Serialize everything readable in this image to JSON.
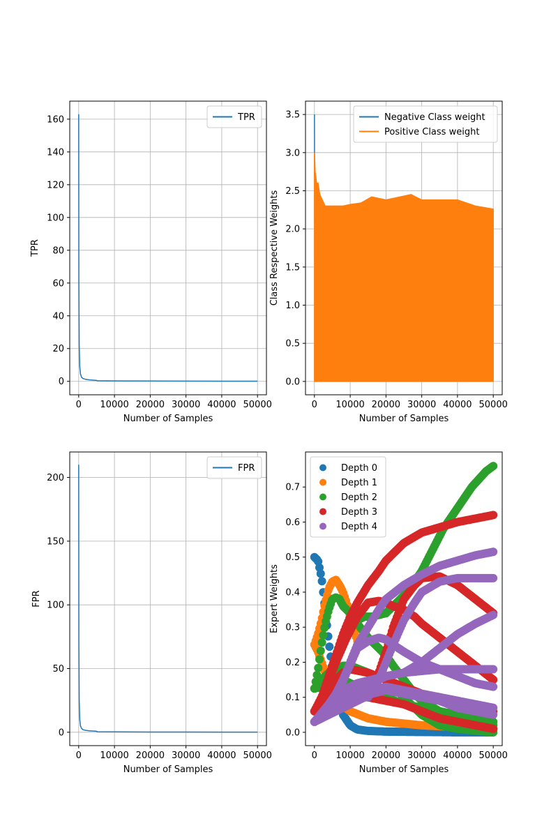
{
  "colors": {
    "blue": "#1f77b4",
    "orange": "#ff7f0e",
    "green": "#2ca02c",
    "red": "#d62728",
    "purple": "#9467bd",
    "grid": "#b0b0b0"
  },
  "chart_data": [
    {
      "id": "tpr",
      "type": "line",
      "xlabel": "Number of Samples",
      "ylabel": "TPR",
      "xlim": [
        -2500,
        52500
      ],
      "ylim": [
        -8.2,
        171
      ],
      "xticks": [
        0,
        10000,
        20000,
        30000,
        40000,
        50000
      ],
      "yticks": [
        0,
        20,
        40,
        60,
        80,
        100,
        120,
        140,
        160
      ],
      "grid": true,
      "legend": "upper-right",
      "series": [
        {
          "name": "TPR",
          "color": "#1f77b4",
          "x": [
            0,
            50,
            150,
            300,
            500,
            800,
            1200,
            2000,
            3000,
            5000,
            5200,
            10000,
            20000,
            30000,
            40000,
            50000
          ],
          "y": [
            163,
            60,
            22,
            9,
            4.5,
            2.5,
            1.7,
            1.2,
            0.9,
            0.6,
            0.35,
            0.25,
            0.18,
            0.14,
            0.12,
            0.1
          ]
        }
      ]
    },
    {
      "id": "class-weights",
      "type": "area",
      "xlabel": "Number of Samples",
      "ylabel": "Class Respective Weights",
      "xlim": [
        -2500,
        52500
      ],
      "ylim": [
        -0.175,
        3.675
      ],
      "xticks": [
        0,
        10000,
        20000,
        30000,
        40000,
        50000
      ],
      "yticks": [
        0.0,
        0.5,
        1.0,
        1.5,
        2.0,
        2.5,
        3.0,
        3.5
      ],
      "grid": true,
      "legend": "upper-right",
      "series": [
        {
          "name": "Negative Class weight",
          "color": "#1f77b4",
          "x": [
            0,
            100,
            200,
            500,
            1000,
            2000,
            5000,
            10000,
            20000,
            30000,
            40000,
            50000
          ],
          "y": [
            3.5,
            1.3,
            1.0,
            0.9,
            0.8,
            0.75,
            0.7,
            0.7,
            0.7,
            0.7,
            0.7,
            0.7
          ]
        },
        {
          "name": "Positive Class weight",
          "color": "#ff7f0e",
          "x": [
            0,
            200,
            600,
            1000,
            1500,
            2000,
            3000,
            5000,
            8000,
            10000,
            13000,
            16000,
            20000,
            24000,
            27000,
            30000,
            35000,
            40000,
            45000,
            50000
          ],
          "y": [
            3.0,
            2.75,
            2.6,
            2.6,
            2.45,
            2.4,
            2.3,
            2.3,
            2.3,
            2.32,
            2.34,
            2.42,
            2.38,
            2.42,
            2.45,
            2.38,
            2.38,
            2.38,
            2.3,
            2.26
          ],
          "lower": 0.0
        }
      ]
    },
    {
      "id": "fpr",
      "type": "line",
      "xlabel": "Number of Samples",
      "ylabel": "FPR",
      "xlim": [
        -2500,
        52500
      ],
      "ylim": [
        -10.5,
        220
      ],
      "xticks": [
        0,
        10000,
        20000,
        30000,
        40000,
        50000
      ],
      "yticks": [
        0,
        50,
        100,
        150,
        200
      ],
      "grid": true,
      "legend": "upper-right",
      "series": [
        {
          "name": "FPR",
          "color": "#1f77b4",
          "x": [
            0,
            50,
            150,
            300,
            500,
            800,
            1200,
            2000,
            3000,
            5000,
            5200,
            10000,
            20000,
            30000,
            40000,
            50000
          ],
          "y": [
            210,
            70,
            25,
            10,
            5,
            3,
            2,
            1.5,
            1.1,
            0.8,
            0.4,
            0.3,
            0.2,
            0.15,
            0.12,
            0.1
          ]
        }
      ]
    },
    {
      "id": "expert-weights",
      "type": "scatter",
      "xlabel": "Number of Samples",
      "ylabel": "Expert Weights",
      "xlim": [
        -2500,
        52500
      ],
      "ylim": [
        -0.038,
        0.8
      ],
      "xticks": [
        0,
        10000,
        20000,
        30000,
        40000,
        50000
      ],
      "yticks": [
        0.0,
        0.1,
        0.2,
        0.3,
        0.4,
        0.5,
        0.6,
        0.7
      ],
      "grid": false,
      "legend": "upper-left",
      "series": [
        {
          "name": "Depth 0",
          "color": "#1f77b4",
          "curves": [
            {
              "x": [
                0,
                1000,
                2000,
                3000,
                4000,
                5000,
                6000,
                7000,
                8000,
                10000,
                12000,
                15000,
                20000,
                30000,
                40000,
                50000
              ],
              "y": [
                0.5,
                0.49,
                0.44,
                0.35,
                0.26,
                0.18,
                0.12,
                0.08,
                0.05,
                0.02,
                0.008,
                0.004,
                0.002,
                0.001,
                0.0,
                0.0
              ]
            }
          ]
        },
        {
          "name": "Depth 1",
          "color": "#ff7f0e",
          "curves": [
            {
              "x": [
                0,
                1000,
                2000,
                3000,
                4000,
                5000,
                6000,
                7000,
                8000,
                9000,
                10000,
                12000
              ],
              "y": [
                0.25,
                0.28,
                0.32,
                0.37,
                0.41,
                0.43,
                0.435,
                0.42,
                0.4,
                0.37,
                0.33,
                0.26
              ]
            },
            {
              "x": [
                0,
                1000,
                2000,
                3000,
                4000,
                5000,
                6000,
                8000,
                10000,
                15000,
                20000,
                30000,
                40000,
                50000
              ],
              "y": [
                0.25,
                0.23,
                0.2,
                0.17,
                0.14,
                0.12,
                0.1,
                0.075,
                0.06,
                0.04,
                0.03,
                0.02,
                0.015,
                0.01
              ]
            }
          ]
        },
        {
          "name": "Depth 2",
          "color": "#2ca02c",
          "curves": [
            {
              "x": [
                0,
                1000,
                2000,
                3000,
                4000,
                5000,
                6000,
                7000,
                8000,
                10000,
                12000,
                14000,
                16000,
                18000,
                20000
              ],
              "y": [
                0.125,
                0.18,
                0.25,
                0.31,
                0.35,
                0.38,
                0.385,
                0.38,
                0.36,
                0.34,
                0.32,
                0.33,
                0.33,
                0.335,
                0.34
              ]
            },
            {
              "x": [
                20000,
                22000,
                25000,
                28000,
                30000,
                33000,
                36000,
                40000,
                44000,
                48000,
                50000
              ],
              "y": [
                0.34,
                0.36,
                0.39,
                0.43,
                0.46,
                0.52,
                0.58,
                0.64,
                0.7,
                0.745,
                0.76
              ]
            },
            {
              "x": [
                10000,
                12000,
                15000,
                18000,
                20000,
                22000,
                25000,
                28000,
                30000,
                35000,
                40000,
                45000,
                50000
              ],
              "y": [
                0.34,
                0.31,
                0.27,
                0.24,
                0.22,
                0.19,
                0.15,
                0.11,
                0.09,
                0.06,
                0.04,
                0.03,
                0.02
              ]
            },
            {
              "x": [
                0,
                2000,
                4000,
                6000,
                8000,
                10000,
                15000,
                20000,
                25000,
                30000,
                35000,
                40000,
                45000,
                50000
              ],
              "y": [
                0.125,
                0.15,
                0.17,
                0.18,
                0.19,
                0.19,
                0.17,
                0.15,
                0.1,
                0.05,
                0.02,
                0.01,
                0.005,
                0.0
              ]
            },
            {
              "x": [
                0,
                2000,
                4000,
                6000,
                8000,
                10000,
                15000,
                20000,
                25000,
                30000,
                35000,
                40000,
                45000,
                50000
              ],
              "y": [
                0.125,
                0.13,
                0.14,
                0.15,
                0.15,
                0.14,
                0.12,
                0.1,
                0.08,
                0.07,
                0.06,
                0.05,
                0.04,
                0.03
              ]
            }
          ]
        },
        {
          "name": "Depth 3",
          "color": "#d62728",
          "curves": [
            {
              "x": [
                0,
                2000,
                4000,
                6000,
                8000,
                10000,
                12000,
                15000,
                18000,
                20000,
                25000,
                30000,
                35000,
                40000,
                45000,
                50000
              ],
              "y": [
                0.06,
                0.1,
                0.16,
                0.22,
                0.28,
                0.33,
                0.37,
                0.42,
                0.46,
                0.49,
                0.54,
                0.57,
                0.585,
                0.6,
                0.61,
                0.62
              ]
            },
            {
              "x": [
                0,
                3000,
                6000,
                9000,
                12000,
                15000,
                18000,
                20000,
                22000,
                25000,
                28000,
                30000,
                35000,
                40000,
                45000,
                50000
              ],
              "y": [
                0.06,
                0.12,
                0.2,
                0.27,
                0.33,
                0.37,
                0.375,
                0.37,
                0.36,
                0.35,
                0.33,
                0.31,
                0.27,
                0.23,
                0.19,
                0.15
              ]
            },
            {
              "x": [
                15000,
                18000,
                20000,
                22000,
                25000,
                28000,
                30000,
                35000,
                40000,
                45000,
                50000
              ],
              "y": [
                0.1,
                0.17,
                0.23,
                0.3,
                0.38,
                0.42,
                0.44,
                0.445,
                0.42,
                0.38,
                0.34
              ]
            },
            {
              "x": [
                0,
                2000,
                4000,
                6000,
                8000,
                10000,
                15000,
                20000,
                25000,
                30000,
                35000,
                40000,
                45000,
                50000
              ],
              "y": [
                0.06,
                0.09,
                0.12,
                0.15,
                0.17,
                0.18,
                0.17,
                0.15,
                0.13,
                0.11,
                0.1,
                0.09,
                0.07,
                0.06
              ]
            },
            {
              "x": [
                0,
                2000,
                4000,
                6000,
                8000,
                10000,
                15000,
                20000,
                25000,
                30000,
                35000,
                40000,
                45000,
                50000
              ],
              "y": [
                0.06,
                0.07,
                0.08,
                0.09,
                0.1,
                0.1,
                0.1,
                0.09,
                0.08,
                0.06,
                0.04,
                0.03,
                0.02,
                0.01
              ]
            }
          ]
        },
        {
          "name": "Depth 4",
          "color": "#9467bd",
          "curves": [
            {
              "x": [
                0,
                2000,
                4000,
                6000,
                8000,
                10000,
                12000,
                15000,
                18000,
                20000,
                25000,
                30000,
                35000,
                40000,
                45000,
                50000
              ],
              "y": [
                0.03,
                0.05,
                0.08,
                0.11,
                0.15,
                0.2,
                0.25,
                0.3,
                0.35,
                0.38,
                0.42,
                0.45,
                0.475,
                0.49,
                0.505,
                0.515
              ]
            },
            {
              "x": [
                15000,
                18000,
                20000,
                22000,
                25000,
                28000,
                30000,
                35000,
                40000,
                45000,
                50000
              ],
              "y": [
                0.1,
                0.15,
                0.2,
                0.25,
                0.32,
                0.37,
                0.4,
                0.43,
                0.44,
                0.44,
                0.44
              ]
            },
            {
              "x": [
                0,
                3000,
                6000,
                9000,
                12000,
                15000,
                18000,
                20000,
                22000,
                25000,
                30000,
                35000,
                40000,
                45000,
                50000
              ],
              "y": [
                0.03,
                0.06,
                0.1,
                0.17,
                0.24,
                0.26,
                0.27,
                0.265,
                0.25,
                0.23,
                0.2,
                0.18,
                0.16,
                0.14,
                0.13
              ]
            },
            {
              "x": [
                0,
                4000,
                8000,
                12000,
                16000,
                20000,
                25000,
                30000,
                35000,
                40000,
                45000,
                50000
              ],
              "y": [
                0.03,
                0.08,
                0.12,
                0.14,
                0.15,
                0.16,
                0.17,
                0.2,
                0.24,
                0.28,
                0.31,
                0.335
              ]
            },
            {
              "x": [
                0,
                4000,
                8000,
                12000,
                16000,
                20000,
                25000,
                30000,
                35000,
                40000,
                45000,
                50000
              ],
              "y": [
                0.03,
                0.07,
                0.1,
                0.12,
                0.14,
                0.16,
                0.17,
                0.175,
                0.18,
                0.18,
                0.18,
                0.18
              ]
            },
            {
              "x": [
                0,
                4000,
                8000,
                12000,
                16000,
                20000,
                25000,
                30000,
                35000,
                40000,
                45000,
                50000
              ],
              "y": [
                0.03,
                0.06,
                0.09,
                0.11,
                0.12,
                0.13,
                0.12,
                0.11,
                0.1,
                0.09,
                0.08,
                0.07
              ]
            },
            {
              "x": [
                0,
                4000,
                8000,
                12000,
                16000,
                20000,
                25000,
                30000,
                35000,
                40000,
                45000,
                50000
              ],
              "y": [
                0.03,
                0.05,
                0.07,
                0.09,
                0.11,
                0.12,
                0.11,
                0.1,
                0.09,
                0.07,
                0.06,
                0.05
              ]
            }
          ]
        }
      ]
    }
  ]
}
